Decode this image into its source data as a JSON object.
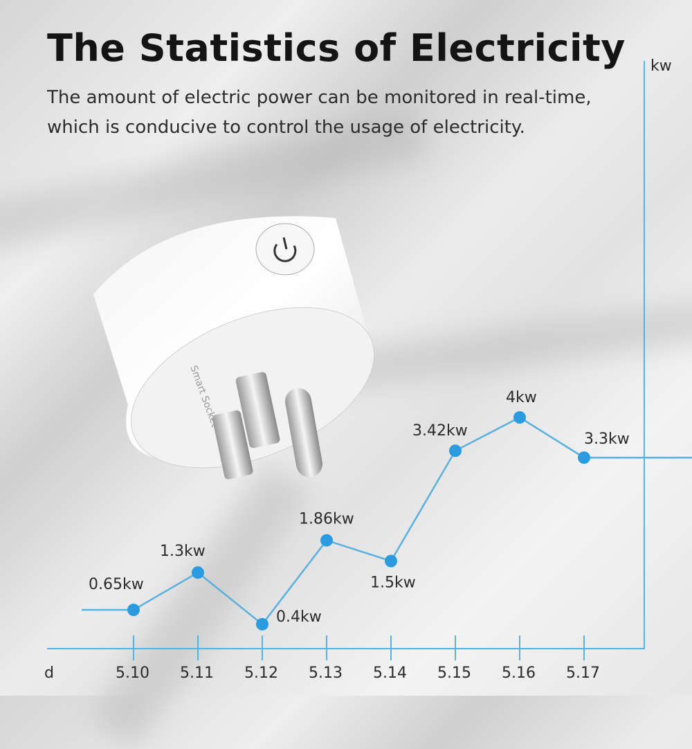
{
  "header": {
    "title": "The Statistics of Electricity",
    "subtitle_line1": "The amount of electric power can be monitored in real-time,",
    "subtitle_line2": "which is conducive to control the usage of electricity."
  },
  "product_image": {
    "label": "Smart Socket"
  },
  "colors": {
    "line": "#5ab0dc",
    "point": "#2b9be0",
    "axis": "#5ab0dc"
  },
  "chart_data": {
    "type": "line",
    "title": "The Statistics of Electricity",
    "xlabel": "d",
    "ylabel": "kw",
    "categories": [
      "5.10",
      "5.11",
      "5.12",
      "5.13",
      "5.14",
      "5.15",
      "5.16",
      "5.17"
    ],
    "values": [
      0.65,
      1.3,
      0.4,
      1.86,
      1.5,
      3.42,
      4,
      3.3
    ],
    "data_labels": [
      "0.65kw",
      "1.3kw",
      "0.4kw",
      "1.86kw",
      "1.5kw",
      "3.42kw",
      "4kw",
      "3.3kw"
    ],
    "ylim": [
      0,
      10
    ],
    "grid": false,
    "legend": "none"
  }
}
